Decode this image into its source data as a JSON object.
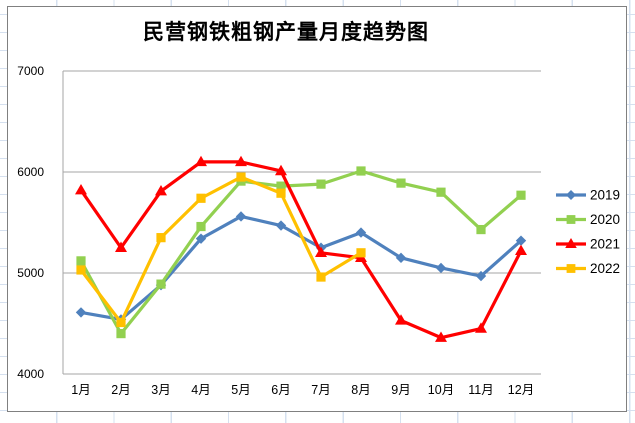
{
  "chart": {
    "title": "民营钢铁粗钢产量月度趋势图"
  },
  "chart_data": {
    "type": "line",
    "title": "民营钢铁粗钢产量月度趋势图",
    "categories": [
      "1月",
      "2月",
      "3月",
      "4月",
      "5月",
      "6月",
      "7月",
      "8月",
      "9月",
      "10月",
      "11月",
      "12月"
    ],
    "series": [
      {
        "name": "2019",
        "color": "#4f81bd",
        "marker": "diamond",
        "values": [
          4610,
          4540,
          4880,
          5340,
          5560,
          5470,
          5250,
          5400,
          5150,
          5050,
          4970,
          5320
        ]
      },
      {
        "name": "2020",
        "color": "#92d050",
        "marker": "square",
        "values": [
          5120,
          4400,
          4890,
          5460,
          5910,
          5860,
          5880,
          6010,
          5890,
          5800,
          5430,
          5770
        ]
      },
      {
        "name": "2021",
        "color": "#ff0000",
        "marker": "triangle",
        "values": [
          5820,
          5250,
          5810,
          6100,
          6100,
          6010,
          5200,
          5150,
          4530,
          4360,
          4450,
          5220
        ]
      },
      {
        "name": "2022",
        "color": "#ffc000",
        "marker": "square",
        "values": [
          5030,
          4510,
          5350,
          5740,
          5950,
          5790,
          4960,
          5200
        ]
      }
    ],
    "ylim": [
      4000,
      7000
    ],
    "yticks": [
      4000,
      5000,
      6000,
      7000
    ],
    "ytick_labels": [
      "4000",
      "5000",
      "6000",
      "7000"
    ],
    "xlabel": "",
    "ylabel": "",
    "grid": "horizontal-only",
    "gridline_color": "#a6a6a6",
    "legend_position": "right",
    "legend_entries": [
      "2019",
      "2020",
      "2021",
      "2022"
    ]
  }
}
